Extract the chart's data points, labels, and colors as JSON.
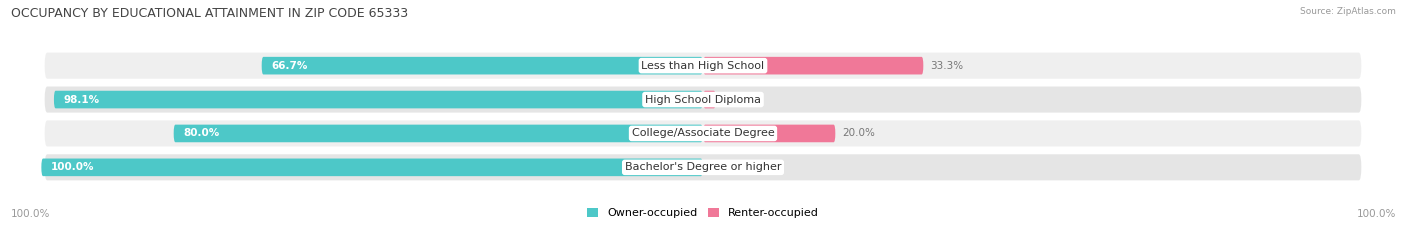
{
  "title": "OCCUPANCY BY EDUCATIONAL ATTAINMENT IN ZIP CODE 65333",
  "source": "Source: ZipAtlas.com",
  "categories": [
    "Less than High School",
    "High School Diploma",
    "College/Associate Degree",
    "Bachelor's Degree or higher"
  ],
  "owner_values": [
    66.7,
    98.1,
    80.0,
    100.0
  ],
  "renter_values": [
    33.3,
    1.9,
    20.0,
    0.0
  ],
  "owner_color": "#4dc8c8",
  "renter_color": "#f07898",
  "owner_label": "Owner-occupied",
  "renter_label": "Renter-occupied",
  "row_bg_colors": [
    "#efefef",
    "#e5e5e5"
  ],
  "axis_label_left": "100.0%",
  "axis_label_right": "100.0%",
  "title_fontsize": 9,
  "label_fontsize": 8,
  "value_fontsize": 7.5,
  "background_color": "#ffffff",
  "total_width": 100.0
}
